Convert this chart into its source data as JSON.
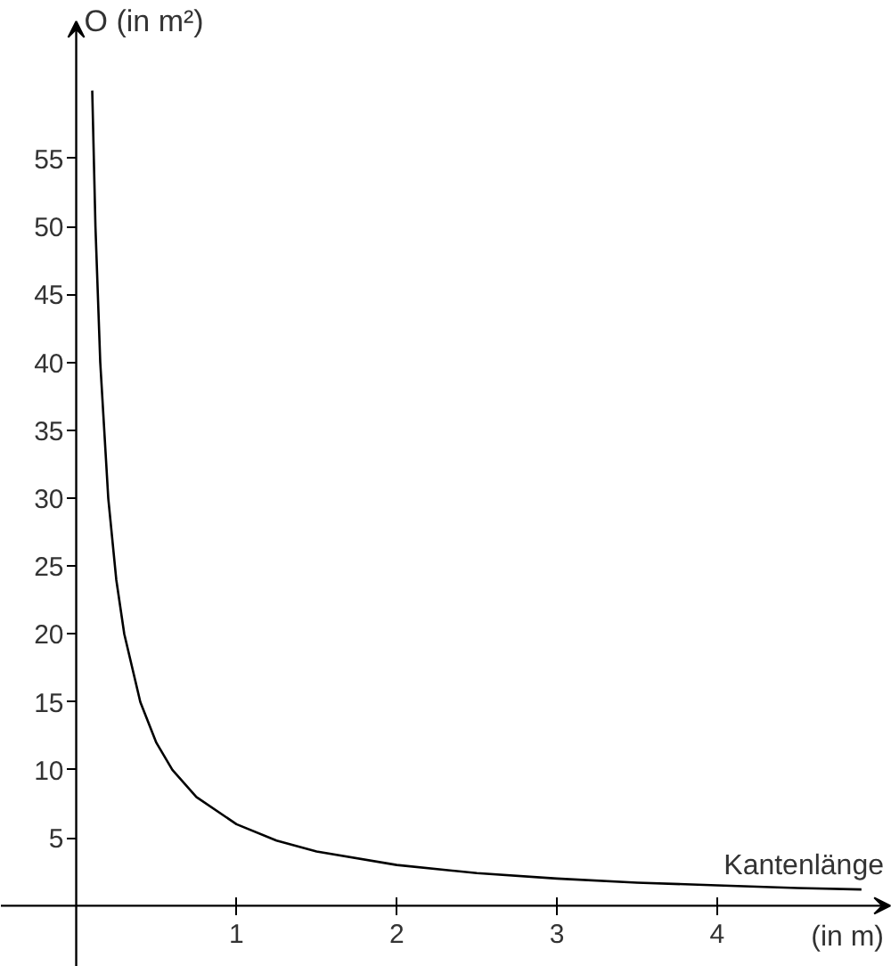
{
  "chart_data": {
    "type": "line",
    "xlabel": "Kantenlänge",
    "ylabel": "O (in m²)",
    "annotations": [
      "(in m)"
    ],
    "x": [
      0.1,
      0.12,
      0.15,
      0.2,
      0.25,
      0.3,
      0.4,
      0.5,
      0.6,
      0.75,
      1,
      1.25,
      1.5,
      2,
      2.5,
      3,
      3.5,
      4,
      4.5,
      4.9
    ],
    "series": [
      {
        "color": "#000000",
        "values": [
          60,
          50,
          40,
          30,
          24,
          20,
          15,
          12,
          10,
          8,
          6,
          4.8,
          4,
          3,
          2.4,
          2,
          1.7,
          1.5,
          1.3,
          1.2
        ]
      }
    ],
    "xlim": [
      -0.47,
      5.09
    ],
    "ylim": [
      -4.5,
      66.6
    ],
    "xticks": [
      1,
      2,
      3,
      4
    ],
    "yticks": [
      5,
      10,
      15,
      20,
      25,
      30,
      35,
      40,
      45,
      50,
      55
    ],
    "marker": "none",
    "line_style": "solid"
  }
}
